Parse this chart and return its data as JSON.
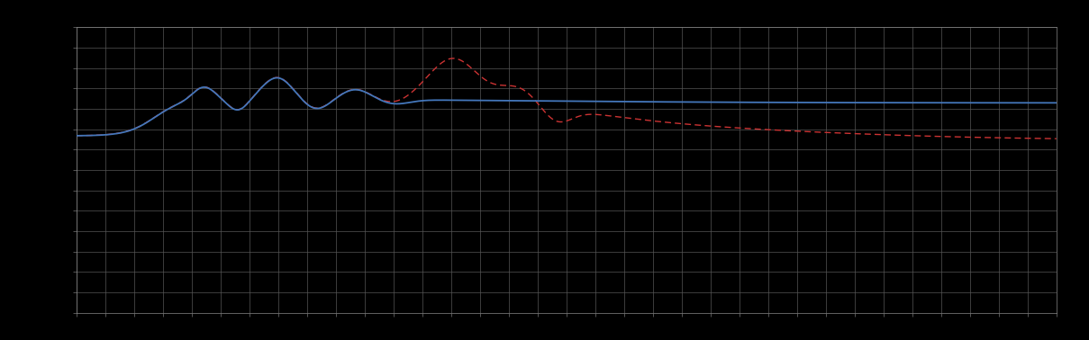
{
  "background_color": "#000000",
  "plot_bg_color": "#000000",
  "grid_color": "#555555",
  "blue_line_color": "#4477bb",
  "red_line_color": "#cc3333",
  "figsize": [
    12.09,
    3.78
  ],
  "dpi": 100,
  "n_x_ticks": 34,
  "n_y_ticks": 14,
  "xlim": [
    0,
    100
  ],
  "ylim": [
    0,
    100
  ]
}
